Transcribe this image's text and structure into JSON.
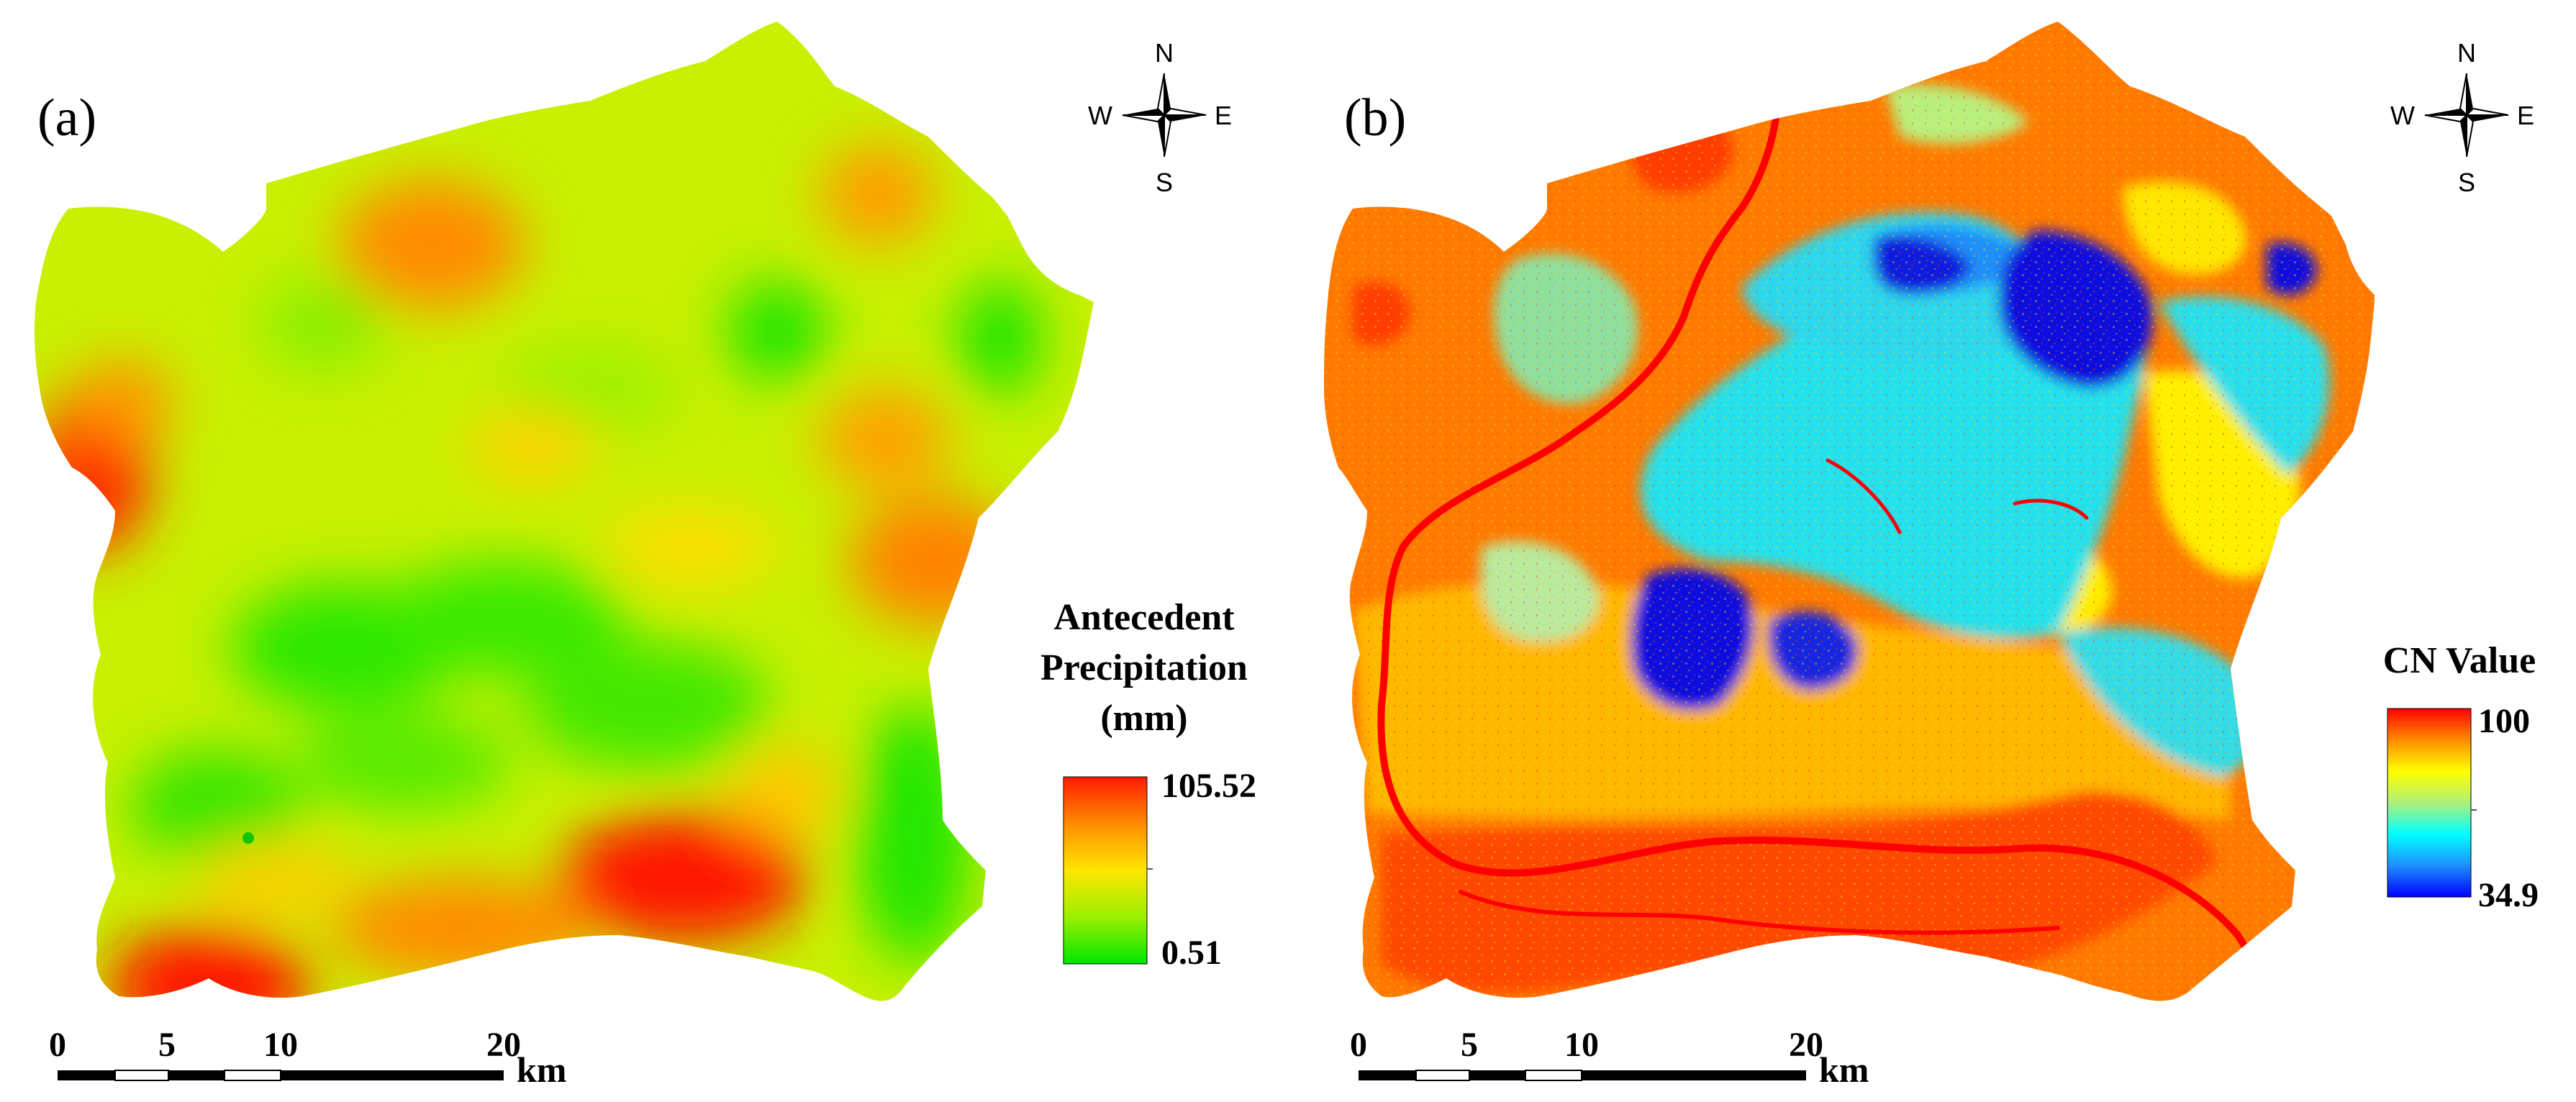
{
  "panels": [
    {
      "id": "a",
      "label": "(a)",
      "legend": {
        "title_lines": [
          "Antecedent",
          "Precipitation",
          "(mm)"
        ],
        "max_label": "105.52",
        "min_label": "0.51",
        "colors": [
          "#ff1a00",
          "#ff8c00",
          "#ffe600",
          "#9bf000",
          "#00e600"
        ]
      },
      "compass": {
        "n": "N",
        "s": "S",
        "e": "E",
        "w": "W"
      },
      "scalebar": {
        "ticks": [
          "0",
          "5",
          "10",
          "20"
        ],
        "unit": "km"
      }
    },
    {
      "id": "b",
      "label": "(b)",
      "legend": {
        "title_lines": [
          "CN Value"
        ],
        "max_label": "100",
        "min_label": "34.9",
        "colors": [
          "#ff0000",
          "#ff8c00",
          "#ffff00",
          "#aef07a",
          "#00ffff",
          "#1e90ff",
          "#0000ff"
        ]
      },
      "compass": {
        "n": "N",
        "s": "S",
        "e": "E",
        "w": "W"
      },
      "scalebar": {
        "ticks": [
          "0",
          "5",
          "10",
          "20"
        ],
        "unit": "km"
      }
    }
  ]
}
